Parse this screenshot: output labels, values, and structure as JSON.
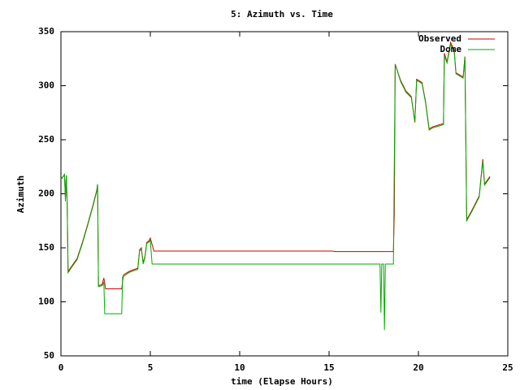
{
  "chart_data": {
    "type": "line",
    "title": "5: Azimuth vs. Time",
    "x_label": "time (Elapse Hours)",
    "y_label": "Azimuth",
    "xlim": [
      0,
      25
    ],
    "xticks": [
      0,
      5,
      10,
      15,
      20,
      25
    ],
    "ylim": [
      50,
      350
    ],
    "yticks": [
      50,
      100,
      150,
      200,
      250,
      300,
      350
    ],
    "grid": false,
    "legend": "top-right",
    "series": [
      {
        "name": "Observed",
        "color": "#cc0000",
        "x": [
          0,
          0.2,
          0.25,
          0.3,
          0.35,
          0.4,
          0.6,
          0.9,
          1.2,
          1.5,
          1.8,
          2.0,
          2.05,
          2.1,
          2.3,
          2.4,
          2.5,
          3.4,
          3.5,
          3.8,
          4.1,
          4.3,
          4.4,
          4.5,
          4.6,
          4.7,
          4.8,
          4.9,
          5.0,
          5.2,
          15.2,
          15.3,
          18.6,
          18.65,
          18.7,
          19.0,
          19.3,
          19.6,
          19.8,
          19.9,
          20.2,
          20.4,
          20.6,
          20.8,
          21.2,
          21.4,
          21.45,
          21.6,
          21.8,
          22.0,
          22.1,
          22.5,
          22.6,
          22.7,
          23.0,
          23.4,
          23.6,
          23.7,
          24.0
        ],
        "values": [
          214,
          217,
          196,
          217,
          190,
          128,
          133,
          140,
          155,
          172,
          190,
          203,
          208,
          115,
          116,
          122,
          112,
          112,
          125,
          128,
          130,
          131,
          148,
          150,
          136,
          142,
          155,
          156,
          159,
          147,
          147,
          146.5,
          146.5,
          182,
          320,
          305,
          295,
          290,
          266,
          306,
          303,
          285,
          260,
          262,
          264,
          265,
          330,
          322,
          340,
          333,
          312,
          308,
          327,
          176,
          185,
          198,
          232,
          209,
          216
        ]
      },
      {
        "name": "Dome",
        "color": "#00aa00",
        "x": [
          0,
          0.2,
          0.25,
          0.3,
          0.35,
          0.4,
          0.6,
          0.9,
          1.2,
          1.5,
          1.8,
          2.0,
          2.05,
          2.1,
          2.3,
          2.4,
          2.45,
          3.4,
          3.45,
          3.8,
          4.1,
          4.3,
          4.4,
          4.5,
          4.6,
          4.7,
          4.8,
          4.9,
          5.0,
          5.1,
          17.85,
          17.9,
          17.95,
          18.05,
          18.1,
          18.15,
          18.6,
          18.7,
          19.0,
          19.3,
          19.6,
          19.8,
          19.9,
          20.2,
          20.4,
          20.6,
          20.8,
          21.2,
          21.4,
          21.45,
          21.6,
          21.8,
          22.0,
          22.1,
          22.5,
          22.6,
          22.7,
          23.0,
          23.4,
          23.6,
          23.7,
          24.0
        ],
        "values": [
          213,
          218,
          193,
          217,
          190,
          127,
          132,
          139,
          154,
          171,
          189,
          202,
          209,
          114,
          115,
          118,
          89,
          89,
          123,
          127,
          129,
          130,
          147,
          149,
          135,
          141,
          154,
          155,
          157,
          135,
          135,
          90,
          135,
          135,
          74,
          135,
          135,
          320,
          304,
          294,
          289,
          267,
          305,
          302,
          284,
          259,
          261,
          263,
          264,
          328,
          321,
          338,
          332,
          311,
          307,
          326,
          175,
          184,
          197,
          230,
          208,
          215
        ]
      }
    ]
  }
}
